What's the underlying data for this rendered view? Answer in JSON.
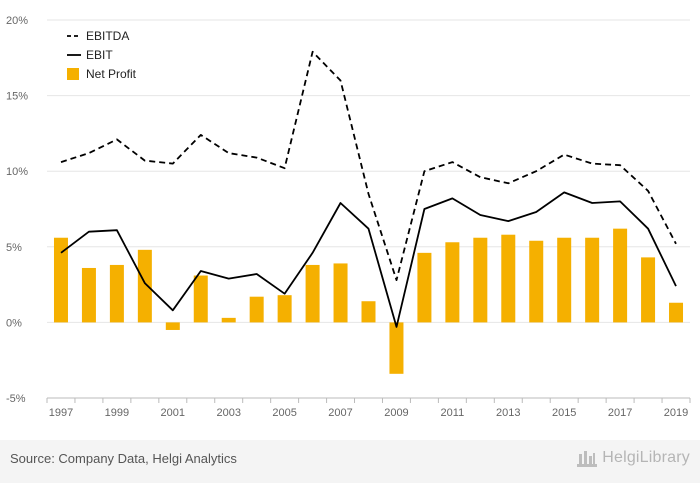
{
  "chart_data": {
    "type": "bar",
    "x": [
      1997,
      1998,
      1999,
      2000,
      2001,
      2002,
      2003,
      2004,
      2005,
      2006,
      2007,
      2008,
      2009,
      2010,
      2011,
      2012,
      2013,
      2014,
      2015,
      2016,
      2017,
      2018,
      2019
    ],
    "x_tick_labels": [
      "1997",
      "1999",
      "2001",
      "2003",
      "2005",
      "2007",
      "2009",
      "2011",
      "2013",
      "2015",
      "2017",
      "2019"
    ],
    "y_tick_labels": [
      "-5%",
      "0%",
      "5%",
      "10%",
      "15%",
      "20%"
    ],
    "ylim": [
      -5,
      20
    ],
    "y_unit": "%",
    "grid": true,
    "legend_position": "top-left",
    "series": [
      {
        "name": "EBITDA",
        "kind": "line",
        "style": "dashed",
        "color": "#000000",
        "values": [
          10.6,
          11.2,
          12.1,
          10.7,
          10.5,
          12.4,
          11.2,
          10.9,
          10.2,
          17.9,
          16.0,
          8.5,
          2.8,
          10.0,
          10.6,
          9.6,
          9.2,
          10.0,
          11.1,
          10.5,
          10.4,
          8.7,
          5.2
        ]
      },
      {
        "name": "EBIT",
        "kind": "line",
        "style": "solid",
        "color": "#000000",
        "values": [
          4.6,
          6.0,
          6.1,
          2.6,
          0.8,
          3.4,
          2.9,
          3.2,
          1.9,
          4.6,
          7.9,
          6.2,
          -0.3,
          7.5,
          8.2,
          7.1,
          6.7,
          7.3,
          8.6,
          7.9,
          8.0,
          6.2,
          2.4
        ]
      },
      {
        "name": "Net Profit",
        "kind": "bar",
        "color": "#f5b000",
        "values": [
          5.6,
          3.6,
          3.8,
          4.8,
          -0.5,
          3.1,
          0.3,
          1.7,
          1.8,
          3.8,
          3.9,
          1.4,
          -3.4,
          4.6,
          5.3,
          5.6,
          5.8,
          5.4,
          5.6,
          5.6,
          6.2,
          4.3,
          1.3
        ]
      }
    ]
  },
  "footer": {
    "source": "Source: Company Data, Helgi Analytics",
    "brand": "HelgiLibrary"
  },
  "colors": {
    "bar": "#f5b000",
    "line": "#000000",
    "grid": "#e6e6e6",
    "axis": "#bbbbbb"
  }
}
